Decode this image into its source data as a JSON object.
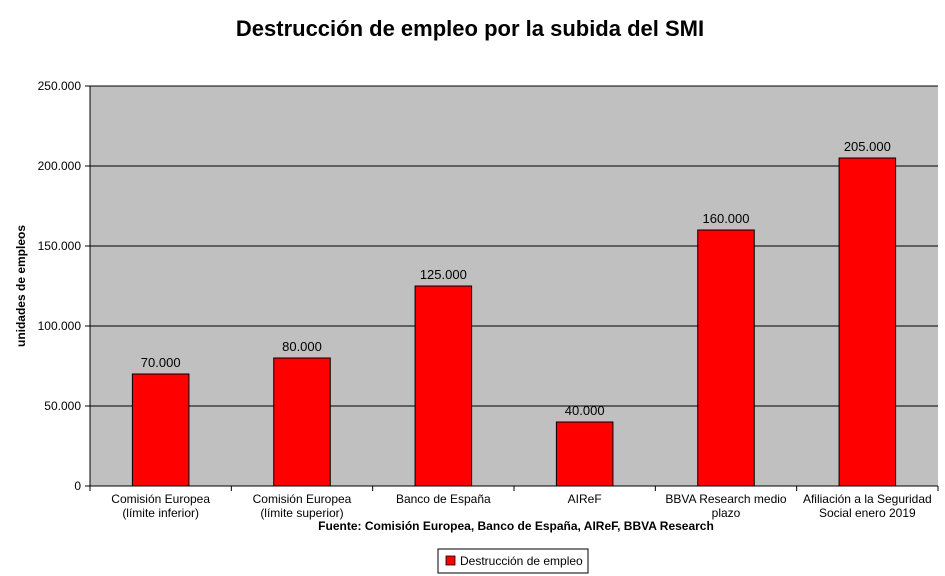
{
  "chart_data": {
    "type": "bar",
    "title": "Destrucción de empleo por la subida del SMI",
    "ylabel": "unidades de empleos",
    "xlabel": "",
    "categories": [
      [
        "Comisión Europea",
        "(límite inferior)"
      ],
      [
        "Comisión Europea",
        "(límite superior)"
      ],
      [
        "Banco de España"
      ],
      [
        "AIReF"
      ],
      [
        "BBVA Research medio",
        "plazo"
      ],
      [
        "Afiliación a la Seguridad",
        "Social enero 2019"
      ]
    ],
    "series": [
      {
        "name": "Destrucción de empleo",
        "values": [
          70000,
          80000,
          125000,
          40000,
          160000,
          205000
        ],
        "labels": [
          "70.000",
          "80.000",
          "125.000",
          "40.000",
          "160.000",
          "205.000"
        ],
        "color": "#ff0000"
      }
    ],
    "ylim": [
      0,
      250000
    ],
    "yticks": [
      0,
      50000,
      100000,
      150000,
      200000,
      250000
    ],
    "ytick_labels": [
      "0",
      "50.000",
      "100.000",
      "150.000",
      "200.000",
      "250.000"
    ],
    "grid": true,
    "plot_background": "#c0c0c0",
    "legend_position": "bottom-center",
    "source": "Fuente: Comisión Europea, Banco de España, AIReF, BBVA Research"
  }
}
